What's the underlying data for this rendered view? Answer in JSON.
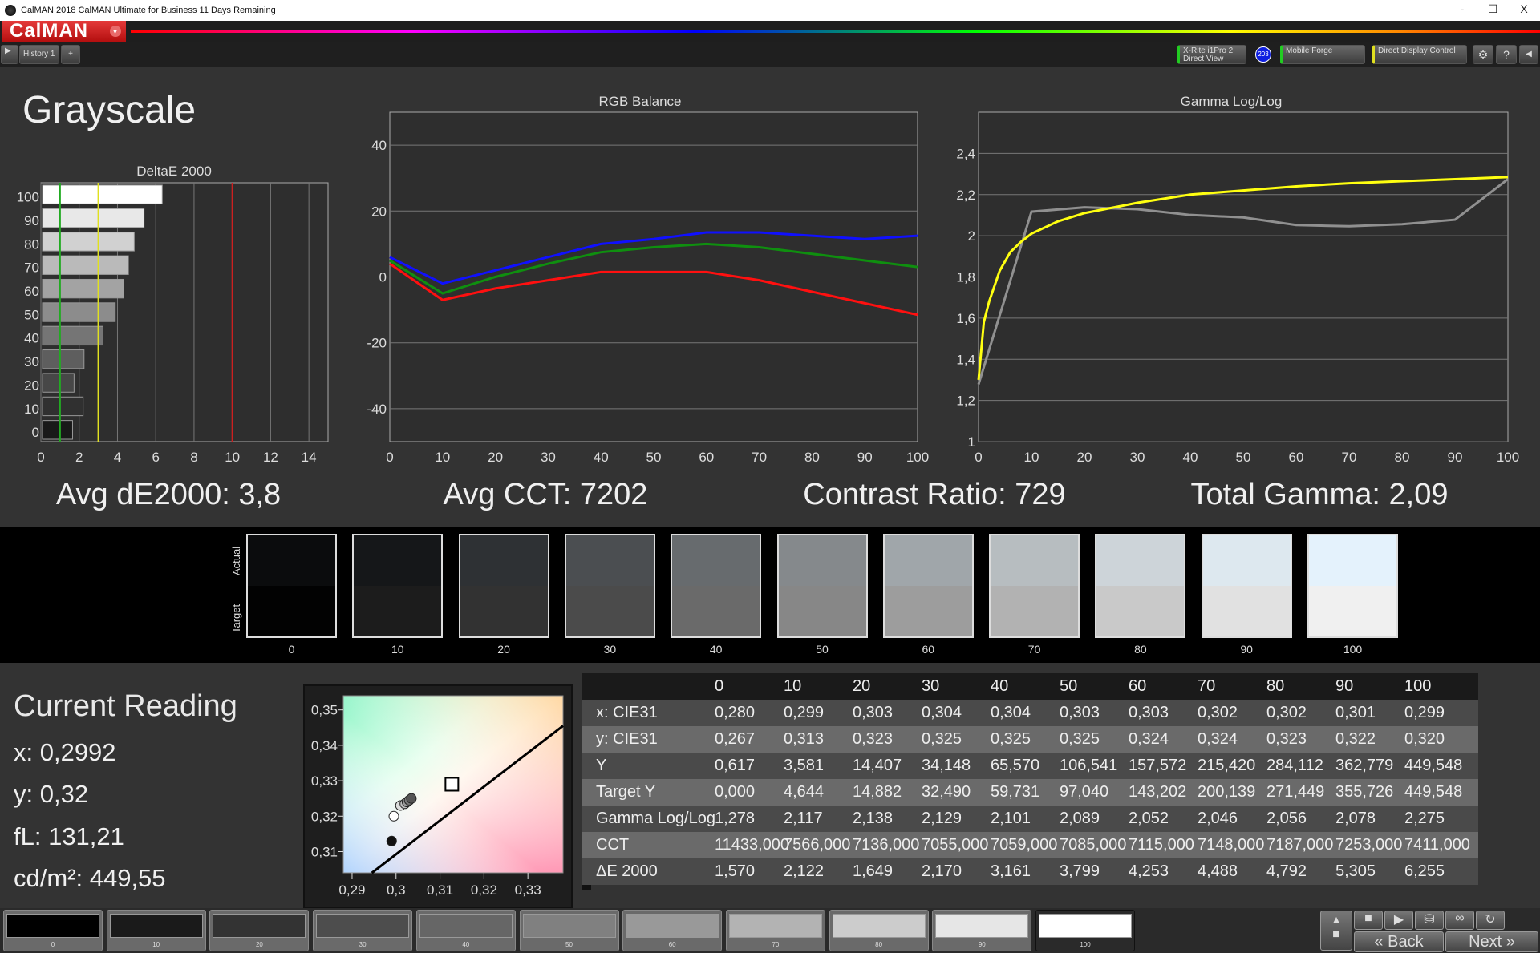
{
  "window": {
    "title": "CalMAN 2018 CalMAN Ultimate for Business 11 Days Remaining",
    "minimize": "-",
    "maximize": "☐",
    "close": "X"
  },
  "logo": {
    "text": "CalMAN",
    "menu": "▾"
  },
  "toolbar": {
    "history_tab": "History 1",
    "add_tab": "+",
    "meter_line1": "X-Rite i1Pro 2",
    "meter_line2": "Direct View",
    "meter_badge": "203",
    "source": "Mobile Forge",
    "display": "Direct Display Control",
    "settings_icon": "gear-icon",
    "help": "?",
    "collapse": "◀"
  },
  "colors": {
    "accent_red": "#d01818",
    "meter_green": "#22cc22",
    "display_yellow": "#e0e020",
    "red": "#ff1010",
    "green": "#0f8f0f",
    "blue": "#1010ff",
    "gamma_target": "#ffff10",
    "gamma_measured": "#909090"
  },
  "page": {
    "title": "Grayscale"
  },
  "summary": {
    "avg_de": "Avg dE2000: 3,8",
    "avg_cct": "Avg CCT: 7202",
    "contrast": "Contrast Ratio: 729",
    "gamma": "Total Gamma: 2,09"
  },
  "chart_data": [
    {
      "type": "bar",
      "title": "DeltaE 2000",
      "orientation": "horizontal",
      "categories": [
        "100",
        "90",
        "80",
        "70",
        "60",
        "50",
        "40",
        "30",
        "20",
        "10",
        "0"
      ],
      "values": [
        6.255,
        5.305,
        4.792,
        4.488,
        4.253,
        3.799,
        3.161,
        2.17,
        1.649,
        2.122,
        1.57
      ],
      "xlim": [
        0,
        15
      ],
      "xticks": [
        "0",
        "2",
        "4",
        "6",
        "8",
        "10",
        "12",
        "14"
      ],
      "thresholds": [
        {
          "value": 1,
          "color": "#22aa22"
        },
        {
          "value": 3,
          "color": "#e0e020"
        },
        {
          "value": 10,
          "color": "#cc2020"
        }
      ],
      "grid": true
    },
    {
      "type": "line",
      "title": "RGB Balance",
      "x": [
        0,
        10,
        20,
        30,
        40,
        50,
        60,
        70,
        80,
        90,
        100
      ],
      "ylim": [
        -50,
        50
      ],
      "yticks": [
        "40",
        "20",
        "0",
        "-20",
        "-40"
      ],
      "xticks": [
        "0",
        "10",
        "20",
        "30",
        "40",
        "50",
        "60",
        "70",
        "80",
        "90",
        "100"
      ],
      "grid": true,
      "series": [
        {
          "color": "#1010ff",
          "values": [
            6,
            -2,
            2,
            6,
            10,
            11.5,
            13.5,
            13.5,
            12.5,
            11.5,
            12.5
          ]
        },
        {
          "color": "#0f8f0f",
          "values": [
            5,
            -5,
            0,
            4,
            7.5,
            9,
            10,
            9,
            7,
            5,
            3
          ]
        },
        {
          "color": "#ff1010",
          "values": [
            4,
            -7,
            -3.5,
            -1,
            1.5,
            1.5,
            1.5,
            -1,
            -4.5,
            -8,
            -11.5
          ]
        }
      ]
    },
    {
      "type": "line",
      "title": "Gamma Log/Log",
      "ylim": [
        1,
        2.6
      ],
      "xlim": [
        0,
        100
      ],
      "yticks": [
        "2,4",
        "2,2",
        "2",
        "1,8",
        "1,6",
        "1,4",
        "1,2",
        "1"
      ],
      "xticks": [
        "0",
        "10",
        "20",
        "30",
        "40",
        "50",
        "60",
        "70",
        "80",
        "90",
        "100"
      ],
      "grid": true,
      "series": [
        {
          "color": "#909090",
          "x": [
            0,
            10,
            20,
            30,
            40,
            50,
            60,
            70,
            80,
            90,
            100
          ],
          "values": [
            1.278,
            2.117,
            2.138,
            2.129,
            2.101,
            2.089,
            2.052,
            2.046,
            2.056,
            2.078,
            2.275
          ]
        },
        {
          "color": "#ffff10",
          "x": [
            0,
            1,
            2,
            4,
            6,
            8,
            10,
            15,
            20,
            30,
            40,
            50,
            60,
            70,
            80,
            90,
            100
          ],
          "values": [
            1.3,
            1.58,
            1.68,
            1.83,
            1.92,
            1.97,
            2.01,
            2.07,
            2.11,
            2.16,
            2.2,
            2.22,
            2.24,
            2.255,
            2.265,
            2.275,
            2.285
          ]
        }
      ]
    },
    {
      "type": "scatter",
      "title": "",
      "xlim": [
        0.288,
        0.338
      ],
      "ylim": [
        0.304,
        0.354
      ],
      "xticks": [
        "0,29",
        "0,3",
        "0,31",
        "0,32",
        "0,33"
      ],
      "yticks": [
        "0,35",
        "0,34",
        "0,33",
        "0,32",
        "0,31"
      ],
      "points": [
        {
          "x": 0.299,
          "y": 0.313,
          "fill": "#111"
        },
        {
          "x": 0.2995,
          "y": 0.32,
          "fill": "#fff"
        },
        {
          "x": 0.301,
          "y": 0.323,
          "fill": "#ddd"
        },
        {
          "x": 0.302,
          "y": 0.3235,
          "fill": "#bbb"
        },
        {
          "x": 0.3025,
          "y": 0.324,
          "fill": "#999"
        },
        {
          "x": 0.303,
          "y": 0.3245,
          "fill": "#777"
        },
        {
          "x": 0.3035,
          "y": 0.325,
          "fill": "#555"
        }
      ],
      "target": {
        "x": 0.3127,
        "y": 0.329
      },
      "locus": [
        [
          0.2945,
          0.304
        ],
        [
          0.338,
          0.3455
        ]
      ]
    }
  ],
  "swatches": {
    "actual_label": "Actual",
    "target_label": "Target",
    "items": [
      {
        "label": "0",
        "actual": "#0b0c0d",
        "target": "#020202"
      },
      {
        "label": "10",
        "actual": "#151719",
        "target": "#1c1c1c"
      },
      {
        "label": "20",
        "actual": "#2e3134",
        "target": "#323232"
      },
      {
        "label": "30",
        "actual": "#4b4e51",
        "target": "#4b4b4b"
      },
      {
        "label": "40",
        "actual": "#676b6e",
        "target": "#6a6a6a"
      },
      {
        "label": "50",
        "actual": "#85898c",
        "target": "#878787"
      },
      {
        "label": "60",
        "actual": "#a0a6aa",
        "target": "#9d9d9d"
      },
      {
        "label": "70",
        "actual": "#b7bdc0",
        "target": "#b2b2b2"
      },
      {
        "label": "80",
        "actual": "#cdd4d9",
        "target": "#c9c9c9"
      },
      {
        "label": "90",
        "actual": "#dde8ef",
        "target": "#e1e1e1"
      },
      {
        "label": "100",
        "actual": "#e4f2fc",
        "target": "#f0f0f0"
      }
    ]
  },
  "reading": {
    "title": "Current Reading",
    "x": "x: 0,2992",
    "y": "y: 0,32",
    "fl": "fL: 131,21",
    "cdm2": "cd/m²: 449,55"
  },
  "table": {
    "headers": [
      "",
      "0",
      "10",
      "20",
      "30",
      "40",
      "50",
      "60",
      "70",
      "80",
      "90",
      "100"
    ],
    "rows": [
      [
        "x: CIE31",
        "0,280",
        "0,299",
        "0,303",
        "0,304",
        "0,304",
        "0,303",
        "0,303",
        "0,302",
        "0,302",
        "0,301",
        "0,299"
      ],
      [
        "y: CIE31",
        "0,267",
        "0,313",
        "0,323",
        "0,325",
        "0,325",
        "0,325",
        "0,324",
        "0,324",
        "0,323",
        "0,322",
        "0,320"
      ],
      [
        "Y",
        "0,617",
        "3,581",
        "14,407",
        "34,148",
        "65,570",
        "106,541",
        "157,572",
        "215,420",
        "284,112",
        "362,779",
        "449,548"
      ],
      [
        "Target Y",
        "0,000",
        "4,644",
        "14,882",
        "32,490",
        "59,731",
        "97,040",
        "143,202",
        "200,139",
        "271,449",
        "355,726",
        "449,548"
      ],
      [
        "Gamma Log/Log",
        "1,278",
        "2,117",
        "2,138",
        "2,129",
        "2,101",
        "2,089",
        "2,052",
        "2,046",
        "2,056",
        "2,078",
        "2,275"
      ],
      [
        "CCT",
        "11433,000",
        "7566,000",
        "7136,000",
        "7055,000",
        "7059,000",
        "7085,000",
        "7115,000",
        "7148,000",
        "7187,000",
        "7253,000",
        "7411,000"
      ],
      [
        "ΔE 2000",
        "1,570",
        "2,122",
        "1,649",
        "2,170",
        "3,161",
        "3,799",
        "4,253",
        "4,488",
        "4,792",
        "5,305",
        "6,255"
      ]
    ]
  },
  "bottom": {
    "swatches": [
      {
        "label": "0",
        "color": "#000000"
      },
      {
        "label": "10",
        "color": "#1a1a1a"
      },
      {
        "label": "20",
        "color": "#333333"
      },
      {
        "label": "30",
        "color": "#4d4d4d"
      },
      {
        "label": "40",
        "color": "#666666"
      },
      {
        "label": "50",
        "color": "#808080"
      },
      {
        "label": "60",
        "color": "#999999"
      },
      {
        "label": "70",
        "color": "#b3b3b3"
      },
      {
        "label": "80",
        "color": "#cccccc"
      },
      {
        "label": "90",
        "color": "#e6e6e6"
      },
      {
        "label": "100",
        "color": "#ffffff"
      }
    ],
    "back": "Back",
    "next": "Next",
    "back_icon": "«",
    "next_icon": "»"
  }
}
